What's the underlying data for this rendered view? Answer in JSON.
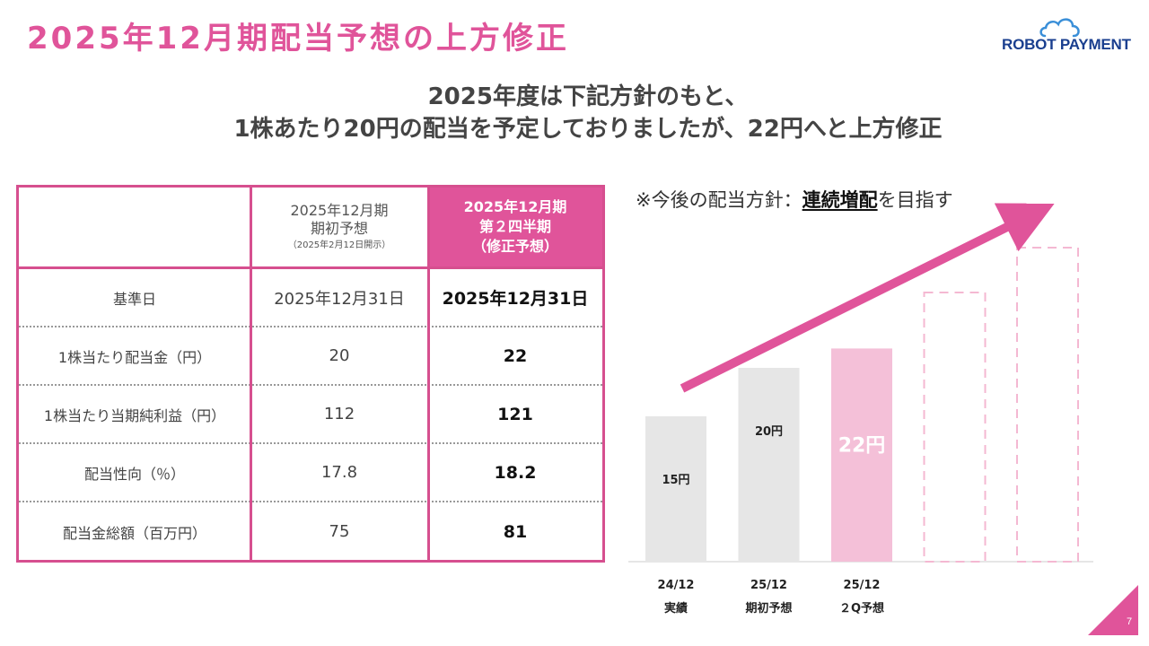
{
  "title": "2025年12月期配当予想の上方修正",
  "logo": {
    "text": "ROBOT PAYMENT"
  },
  "subtitle": {
    "line1": "2025年度は下記方針のもと、",
    "line2": "1株あたり20円の配当を予定しておりましたが、22円へと上方修正"
  },
  "table": {
    "header": {
      "col2_line1": "2025年12月期",
      "col2_line2": "期初予想",
      "col2_small": "（2025年2月12日開示）",
      "col3_line1": "2025年12月期",
      "col3_line2": "第２四半期",
      "col3_line3": "（修正予想）"
    },
    "rows": [
      {
        "label": "基準日",
        "initial": "2025年12月31日",
        "revised": "2025年12月31日"
      },
      {
        "label": "1株当たり配当金（円）",
        "initial": "20",
        "revised": "22"
      },
      {
        "label": "1株当たり当期純利益（円）",
        "initial": "112",
        "revised": "121"
      },
      {
        "label": "配当性向（％）",
        "initial": "17.8",
        "revised": "18.2"
      },
      {
        "label": "配当金総額（百万円）",
        "initial": "75",
        "revised": "81"
      }
    ]
  },
  "note": {
    "prefix": "※今後の配当方針：",
    "emphasis": "連続増配",
    "suffix": "を目指す"
  },
  "page_number": "7",
  "colors": {
    "accent": "#e0549a",
    "bar_gray": "#e6e6e6",
    "bar_pink": "#f4c0d8",
    "logo_blue": "#1a3f8f",
    "cloud_blue": "#3a8fd8"
  },
  "chart_data": {
    "type": "bar",
    "categories": [
      {
        "line1": "24/12",
        "line2": "実績"
      },
      {
        "line1": "25/12",
        "line2": "期初予想"
      },
      {
        "line1": "25/12",
        "line2": "２Q予想"
      }
    ],
    "values": [
      15,
      20,
      22
    ],
    "value_labels": [
      "15円",
      "20円",
      "22円"
    ],
    "highlight_index": 2,
    "future_placeholders": 2,
    "trend_arrow": true,
    "grid": false
  }
}
